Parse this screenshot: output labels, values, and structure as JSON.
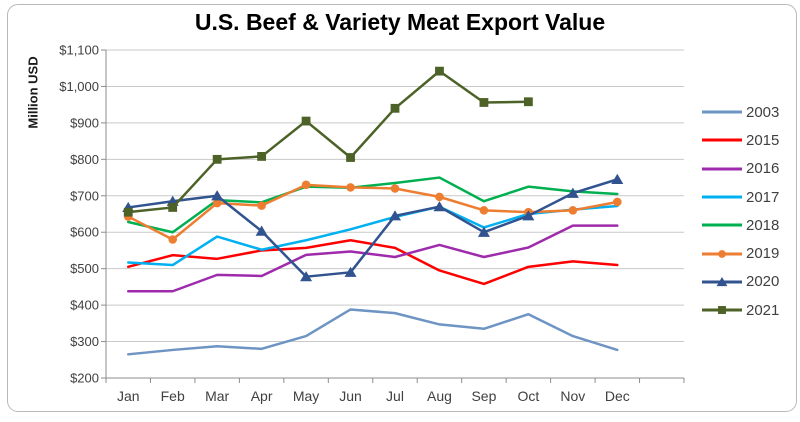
{
  "chart_data": {
    "type": "line",
    "title": "U.S. Beef & Variety Meat Export Value",
    "ylabel": "Million USD",
    "xlabel": "",
    "ylim": [
      200,
      1100
    ],
    "ytick_step": 100,
    "ytick_format": "$#,##0",
    "grid": "horizontal",
    "legend_position": "right",
    "categories": [
      "Jan",
      "Feb",
      "Mar",
      "Apr",
      "May",
      "Jun",
      "Jul",
      "Aug",
      "Sep",
      "Oct",
      "Nov",
      "Dec"
    ],
    "series": [
      {
        "name": "2003",
        "color": "#6E94C4",
        "marker": "none",
        "values": [
          265,
          277,
          287,
          280,
          315,
          388,
          378,
          347,
          335,
          375,
          315,
          277
        ]
      },
      {
        "name": "2015",
        "color": "#FE0000",
        "marker": "none",
        "values": [
          505,
          537,
          527,
          550,
          557,
          578,
          557,
          495,
          458,
          505,
          520,
          510
        ]
      },
      {
        "name": "2016",
        "color": "#9E2BAC",
        "marker": "none",
        "values": [
          438,
          438,
          483,
          480,
          538,
          547,
          532,
          565,
          532,
          558,
          618,
          618
        ]
      },
      {
        "name": "2017",
        "color": "#00B0F0",
        "marker": "none",
        "values": [
          517,
          510,
          588,
          552,
          578,
          608,
          642,
          670,
          613,
          650,
          662,
          672
        ]
      },
      {
        "name": "2018",
        "color": "#00B050",
        "marker": "none",
        "values": [
          628,
          600,
          688,
          682,
          725,
          722,
          735,
          750,
          685,
          725,
          712,
          705
        ]
      },
      {
        "name": "2019",
        "color": "#ED7D31",
        "marker": "circle",
        "values": [
          643,
          580,
          680,
          673,
          730,
          723,
          720,
          697,
          660,
          655,
          660,
          683
        ]
      },
      {
        "name": "2020",
        "color": "#31538F",
        "marker": "triangle",
        "values": [
          668,
          685,
          700,
          603,
          478,
          490,
          645,
          670,
          600,
          645,
          707,
          745
        ]
      },
      {
        "name": "2021",
        "color": "#4C6227",
        "marker": "square",
        "values": [
          655,
          668,
          800,
          808,
          905,
          805,
          940,
          1042,
          956,
          958,
          null,
          null
        ]
      }
    ]
  }
}
